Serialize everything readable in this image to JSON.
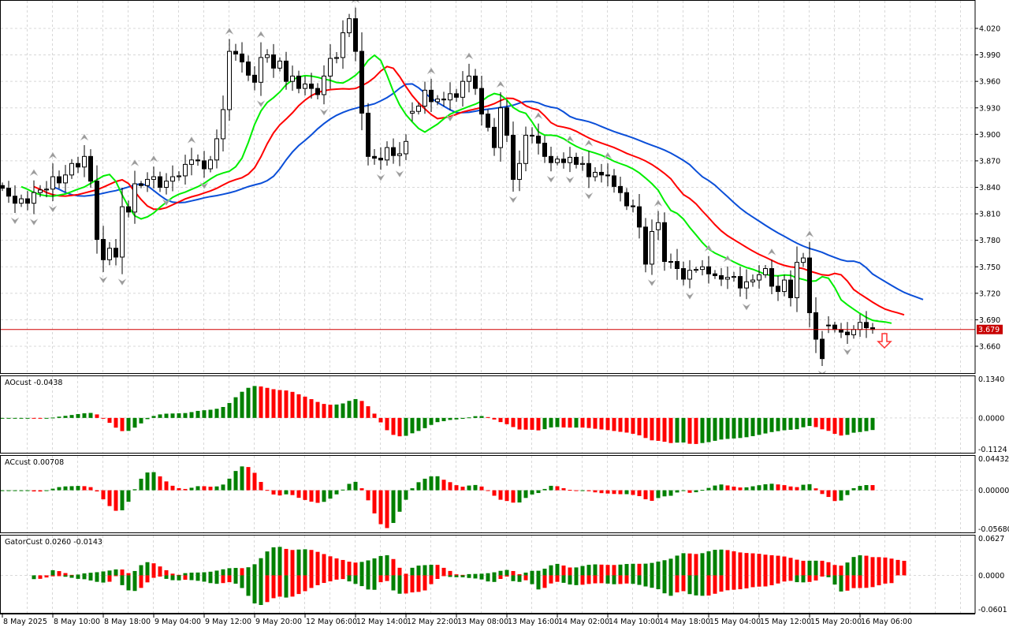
{
  "colors": {
    "jaw": "#0b4fd8",
    "teeth": "#ff0000",
    "lips": "#00ee00",
    "up_bar": "#008000",
    "down_bar": "#ff0000",
    "grid": "#d8d8d8",
    "price_line": "#d00000",
    "fractal": "#9a9a9a"
  },
  "main": {
    "price_labels": [
      "4.020",
      "3.990",
      "3.960",
      "3.930",
      "3.900",
      "3.870",
      "3.840",
      "3.810",
      "3.780",
      "3.750",
      "3.720",
      "3.690",
      "3.660"
    ],
    "current_price": "3.679",
    "signal_icon": "sell-arrow-down"
  },
  "panels": [
    {
      "title": "AOcust -0.0438",
      "max_label": "0.1340",
      "zero_label": "0.0000",
      "min_label": "-0.1124"
    },
    {
      "title": "ACcust 0.00708",
      "max_label": "0.04432",
      "zero_label": "0.00000",
      "min_label": "-0.05680"
    },
    {
      "title": "GatorCust 0.0260 -0.0143",
      "max_label": "0.0627",
      "zero_label": "0.0000",
      "min_label": "-0.0601"
    }
  ],
  "time_labels": [
    "8 May 2025",
    "8 May 10:00",
    "8 May 18:00",
    "9 May 04:00",
    "9 May 12:00",
    "9 May 20:00",
    "12 May 06:00",
    "12 May 14:00",
    "12 May 22:00",
    "13 May 08:00",
    "13 May 16:00",
    "14 May 02:00",
    "14 May 10:00",
    "14 May 18:00",
    "15 May 04:00",
    "15 May 12:00",
    "15 May 20:00",
    "16 May 06:00"
  ],
  "chart_data": {
    "type": "candlestick",
    "timeframe_hours": 1,
    "price_range": [
      3.64,
      4.04
    ],
    "first_open": 3.842,
    "open_overrides": {
      "65": 3.924,
      "104": 3.792,
      "131": 3.684
    },
    "closes": [
      3.839,
      3.83,
      3.822,
      3.827,
      3.822,
      3.834,
      3.837,
      3.838,
      3.852,
      3.845,
      3.854,
      3.867,
      3.863,
      3.875,
      3.847,
      3.781,
      3.758,
      3.771,
      3.761,
      3.818,
      3.812,
      3.844,
      3.842,
      3.849,
      3.852,
      3.84,
      3.847,
      3.852,
      3.853,
      3.866,
      3.871,
      3.87,
      3.861,
      3.871,
      3.895,
      3.928,
      3.994,
      3.991,
      3.982,
      3.967,
      3.959,
      3.987,
      3.99,
      3.975,
      3.983,
      3.96,
      3.966,
      3.952,
      3.957,
      3.952,
      3.945,
      3.966,
      3.986,
      3.987,
      4.015,
      4.031,
      3.994,
      3.924,
      3.875,
      3.873,
      3.871,
      3.885,
      3.876,
      3.878,
      3.892,
      3.926,
      3.932,
      3.95,
      3.937,
      3.94,
      3.939,
      3.946,
      3.942,
      3.96,
      3.966,
      3.952,
      3.923,
      3.908,
      3.885,
      3.93,
      3.899,
      3.849,
      3.867,
      3.899,
      3.898,
      3.89,
      3.875,
      3.868,
      3.872,
      3.868,
      3.874,
      3.866,
      3.867,
      3.852,
      3.857,
      3.854,
      3.853,
      3.841,
      3.834,
      3.819,
      3.818,
      3.795,
      3.753,
      3.79,
      3.8,
      3.756,
      3.756,
      3.748,
      3.736,
      3.746,
      3.747,
      3.75,
      3.742,
      3.74,
      3.736,
      3.738,
      3.739,
      3.726,
      3.733,
      3.735,
      3.741,
      3.748,
      3.728,
      3.722,
      3.735,
      3.715,
      3.755,
      3.76,
      3.698,
      3.668,
      3.646,
      3.684,
      3.679,
      3.676,
      3.673,
      3.679,
      3.687,
      3.681,
      3.679
    ],
    "indicators": [
      "Alligator (jaw 13/8, teeth 8/5, lips 5/3)",
      "AOcust",
      "ACcust",
      "GatorCust",
      "Fractals"
    ]
  }
}
